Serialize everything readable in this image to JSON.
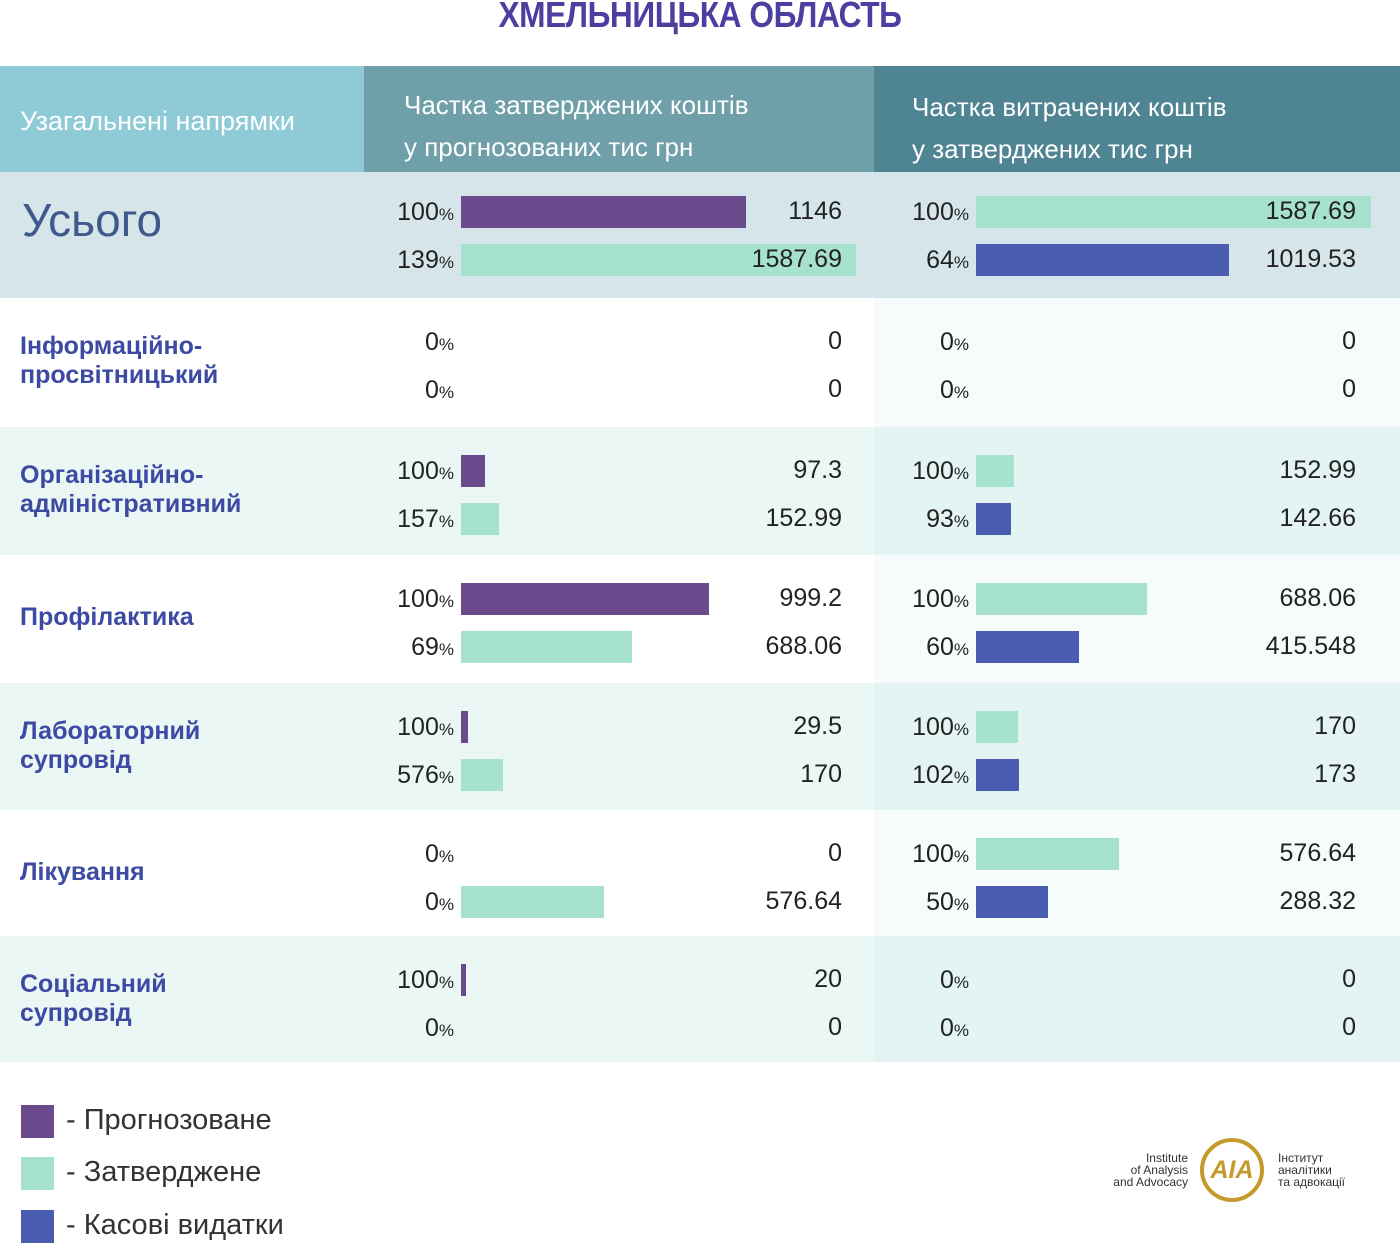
{
  "title": "ХМЕЛЬНИЦЬКА ОБЛАСТЬ",
  "headers": {
    "col0": "Узагальнені  напрямки",
    "col1_line1": "Частка затверджених коштів",
    "col1_line2": "у прогнозованих тис грн",
    "col2_line1": "Частка витрачених коштів",
    "col2_line2": "у затверджених тис грн"
  },
  "percent_sign": "%",
  "colors": {
    "forecast": "#6a4a8c",
    "approved": "#a6e2cd",
    "cash": "#4a5cb0",
    "row_even": "#eaf7f5",
    "row_odd": "#ffffff",
    "total_row": "#d6e5ea",
    "right_col_shade": "#f6fbfb"
  },
  "chart_data": {
    "type": "bar",
    "title": "ХМЕЛЬНИЦЬКА ОБЛАСТЬ",
    "unit": "тис грн",
    "legend": [
      "Прогнозоване",
      "Затверджене",
      "Касові видатки"
    ],
    "rows": [
      {
        "category": "Усього",
        "left": [
          {
            "pct": "100",
            "value": "1146",
            "series": "forecast"
          },
          {
            "pct": "139",
            "value": "1587.69",
            "series": "approved"
          }
        ],
        "right": [
          {
            "pct": "100",
            "value": "1587.69",
            "series": "approved"
          },
          {
            "pct": "64",
            "value": "1019.53",
            "series": "cash"
          }
        ]
      },
      {
        "category": "Інформаційно-\nпросвітницький",
        "left": [
          {
            "pct": "0",
            "value": "0",
            "series": "forecast"
          },
          {
            "pct": "0",
            "value": "0",
            "series": "approved"
          }
        ],
        "right": [
          {
            "pct": "0",
            "value": "0",
            "series": "approved"
          },
          {
            "pct": "0",
            "value": "0",
            "series": "cash"
          }
        ]
      },
      {
        "category": "Організаційно-\nадміністративний",
        "left": [
          {
            "pct": "100",
            "value": "97.3",
            "series": "forecast"
          },
          {
            "pct": "157",
            "value": "152.99",
            "series": "approved"
          }
        ],
        "right": [
          {
            "pct": "100",
            "value": "152.99",
            "series": "approved"
          },
          {
            "pct": "93",
            "value": "142.66",
            "series": "cash"
          }
        ]
      },
      {
        "category": "Профілактика",
        "left": [
          {
            "pct": "100",
            "value": "999.2",
            "series": "forecast"
          },
          {
            "pct": "69",
            "value": "688.06",
            "series": "approved"
          }
        ],
        "right": [
          {
            "pct": "100",
            "value": "688.06",
            "series": "approved"
          },
          {
            "pct": "60",
            "value": "415.548",
            "series": "cash"
          }
        ]
      },
      {
        "category": "Лабораторний\nсупровід",
        "left": [
          {
            "pct": "100",
            "value": "29.5",
            "series": "forecast"
          },
          {
            "pct": "576",
            "value": "170",
            "series": "approved"
          }
        ],
        "right": [
          {
            "pct": "100",
            "value": "170",
            "series": "approved"
          },
          {
            "pct": "102",
            "value": "173",
            "series": "cash"
          }
        ]
      },
      {
        "category": "Лікування",
        "left": [
          {
            "pct": "0",
            "value": "0",
            "series": "forecast"
          },
          {
            "pct": "0",
            "value": "576.64",
            "series": "approved"
          }
        ],
        "right": [
          {
            "pct": "100",
            "value": "576.64",
            "series": "approved"
          },
          {
            "pct": "50",
            "value": "288.32",
            "series": "cash"
          }
        ]
      },
      {
        "category": "Соціальний\nсупровід",
        "left": [
          {
            "pct": "100",
            "value": "20",
            "series": "forecast"
          },
          {
            "pct": "0",
            "value": "0",
            "series": "approved"
          }
        ],
        "right": [
          {
            "pct": "0",
            "value": "0",
            "series": "approved"
          },
          {
            "pct": "0",
            "value": "0",
            "series": "cash"
          }
        ]
      }
    ]
  },
  "legend": [
    {
      "label": "- Прогнозоване",
      "series": "forecast"
    },
    {
      "label": "- Затверджене",
      "series": "approved"
    },
    {
      "label": "- Касові видатки",
      "series": "cash"
    }
  ],
  "logo": {
    "en": "Institute\nof Analysis\nand Advocacy",
    "mark": "AIA",
    "ua": "Інститут\nаналітики\nта адвокації"
  }
}
